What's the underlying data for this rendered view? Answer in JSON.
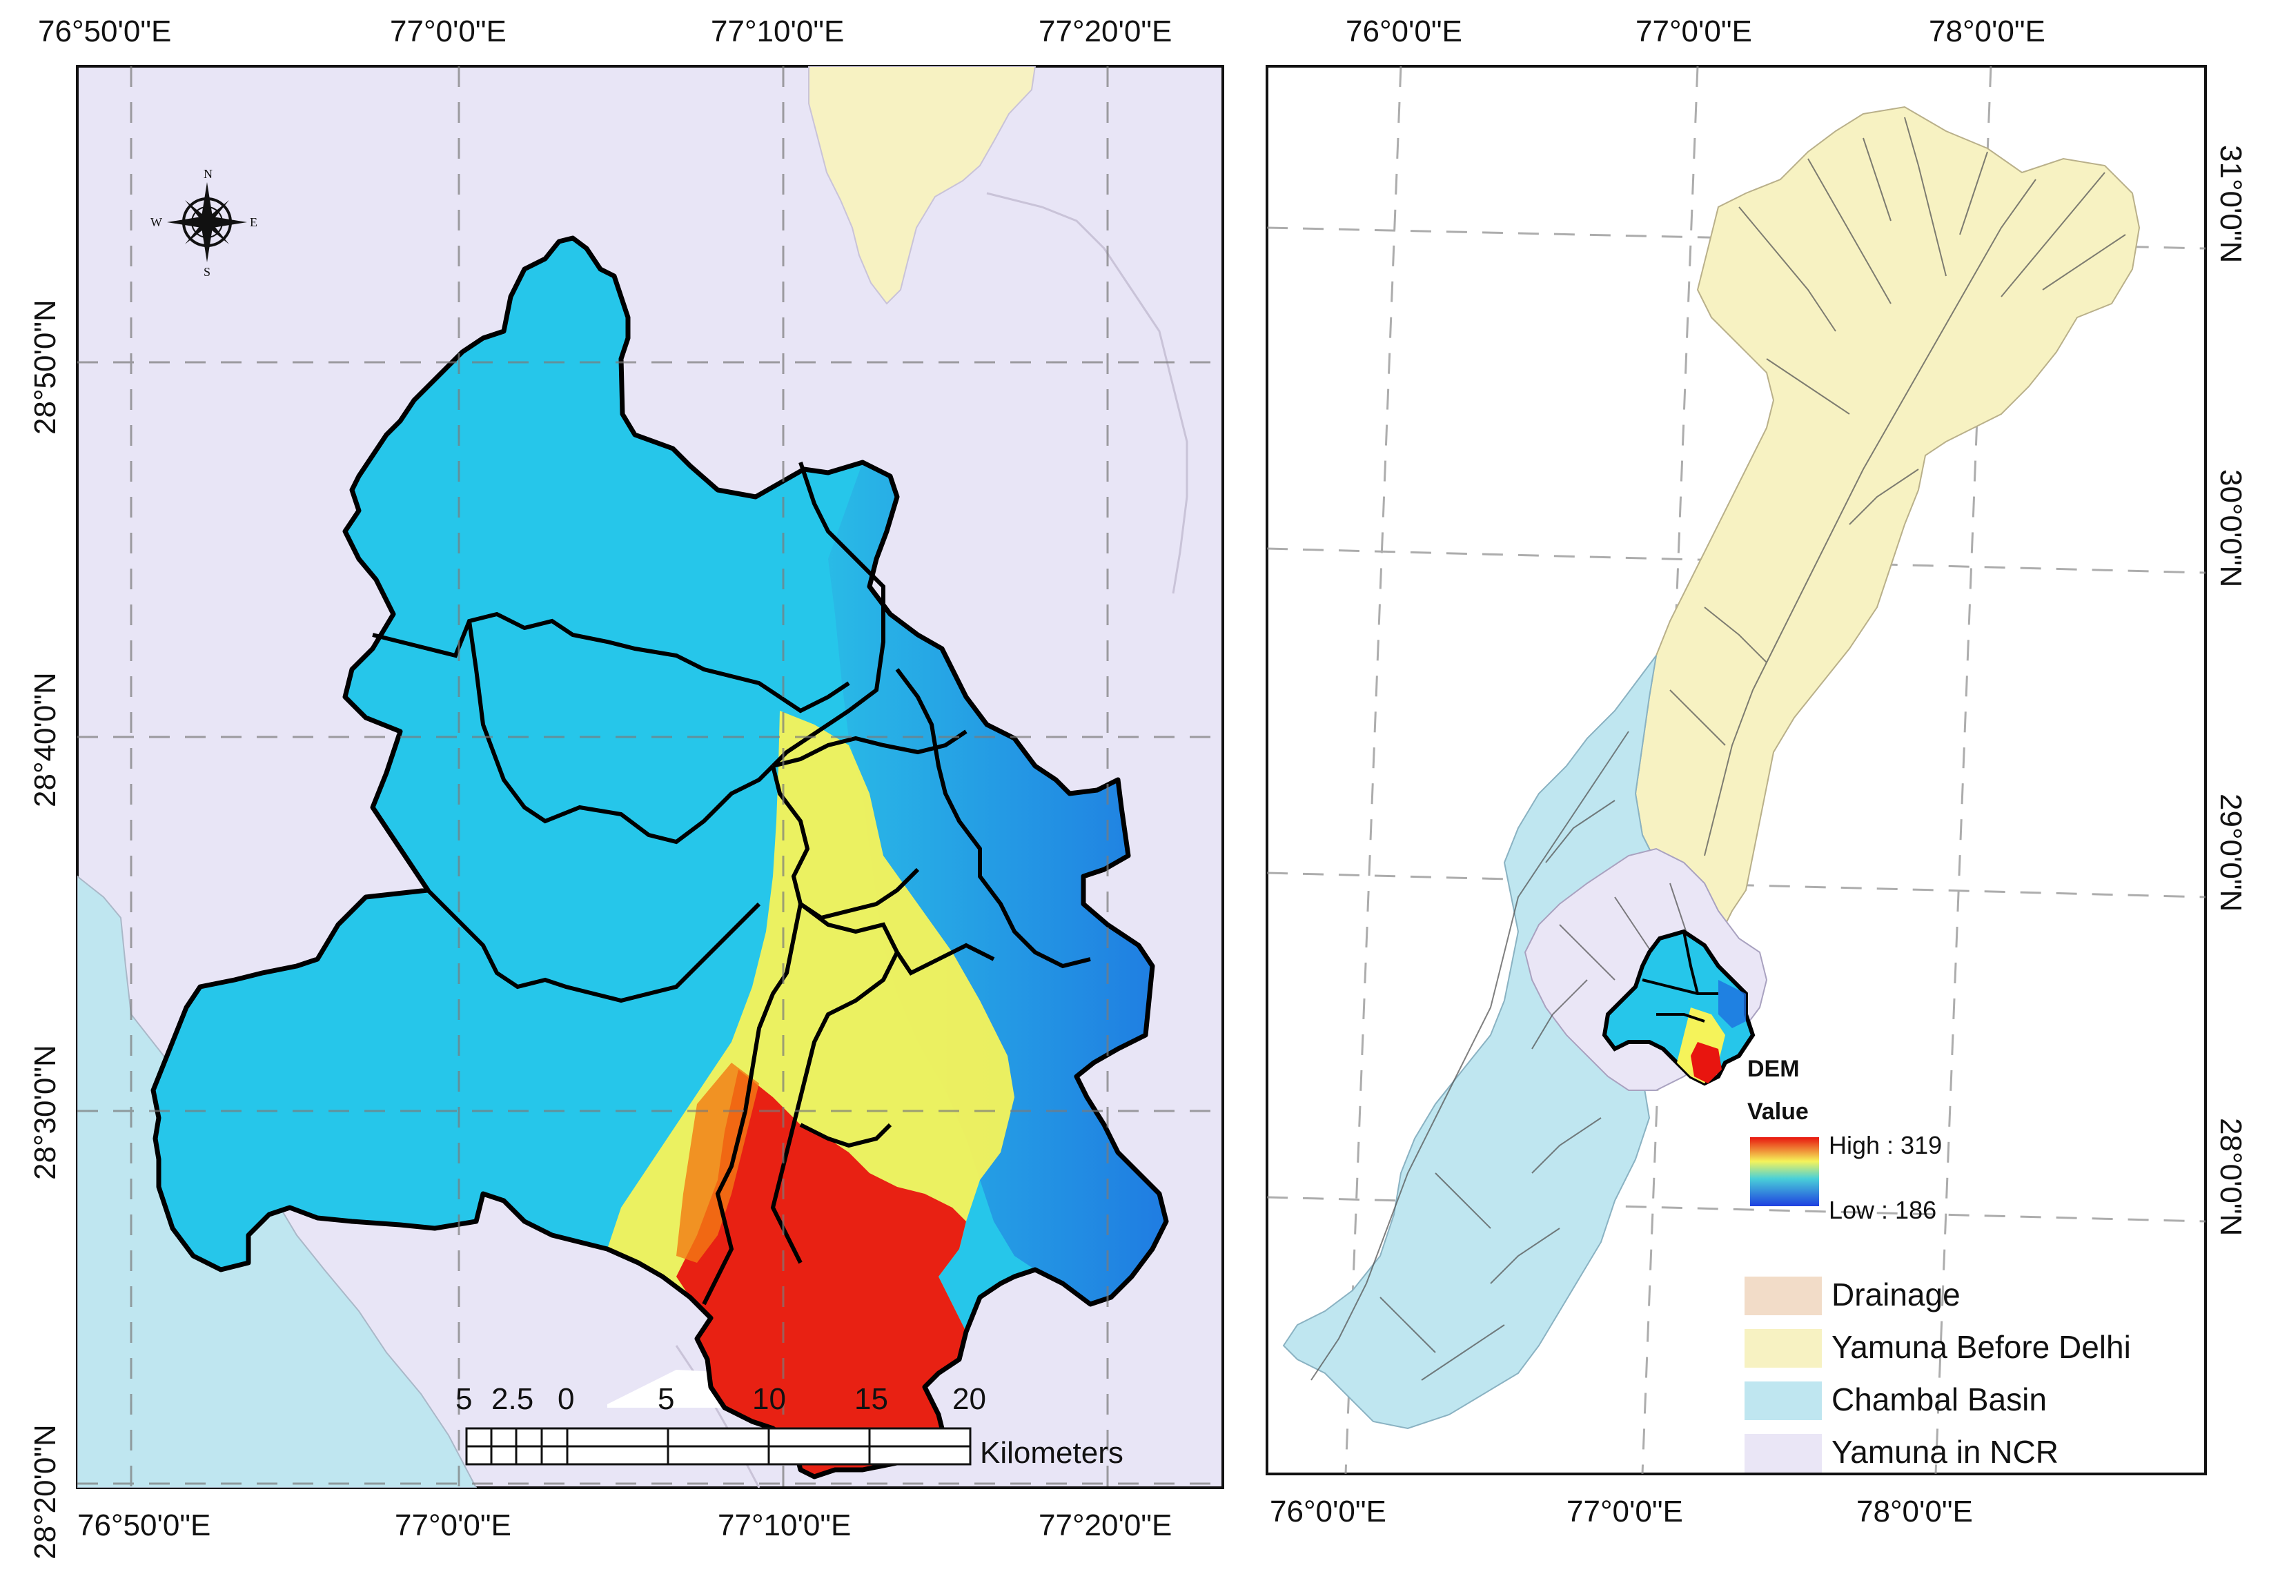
{
  "left_map": {
    "top_ticks": [
      "76°50'0\"E",
      "77°0'0\"E",
      "77°10'0\"E",
      "77°20'0\"E"
    ],
    "bottom_ticks": [
      "76°50'0\"E",
      "77°0'0\"E",
      "77°10'0\"E",
      "77°20'0\"E"
    ],
    "left_ticks": [
      "28°50'0\"N",
      "28°40'0\"N",
      "28°30'0\"N",
      "28°20'0\"N"
    ],
    "compass": {
      "n": "N",
      "s": "S",
      "e": "E",
      "w": "W"
    },
    "scale_bar": {
      "labels": [
        "5",
        "2.5",
        "0",
        "5",
        "10",
        "15",
        "20"
      ],
      "unit": "Kilometers"
    }
  },
  "right_map": {
    "top_ticks": [
      "76°0'0\"E",
      "77°0'0\"E",
      "78°0'0\"E"
    ],
    "bottom_ticks": [
      "76°0'0\"E",
      "77°0'0\"E",
      "78°0'0\"E"
    ],
    "right_ticks": [
      "31°0'0\"N",
      "30°0'0\"N",
      "29°0'0\"N",
      "28°0'0\"N"
    ],
    "dem_legend": {
      "title": "DEM",
      "subtitle": "Value",
      "high": "High : 319",
      "low": "Low : 186"
    },
    "legend": [
      {
        "label": "Drainage",
        "color": "#f2dcc8"
      },
      {
        "label": "Yamuna Before Delhi",
        "color": "#f7f2c2"
      },
      {
        "label": "Chambal Basin",
        "color": "#bfe6f0"
      },
      {
        "label": "Yamuna in NCR",
        "color": "#eae6f6"
      }
    ]
  },
  "colors": {
    "lavender": "#e8e5f6",
    "yellow_basin": "#f7f2c2",
    "chambal": "#bfe6f0",
    "dem_low": "#1e6fe0",
    "dem_mid_low": "#21c4e6",
    "dem_mid": "#f5f35a",
    "dem_high": "#e8150f"
  }
}
